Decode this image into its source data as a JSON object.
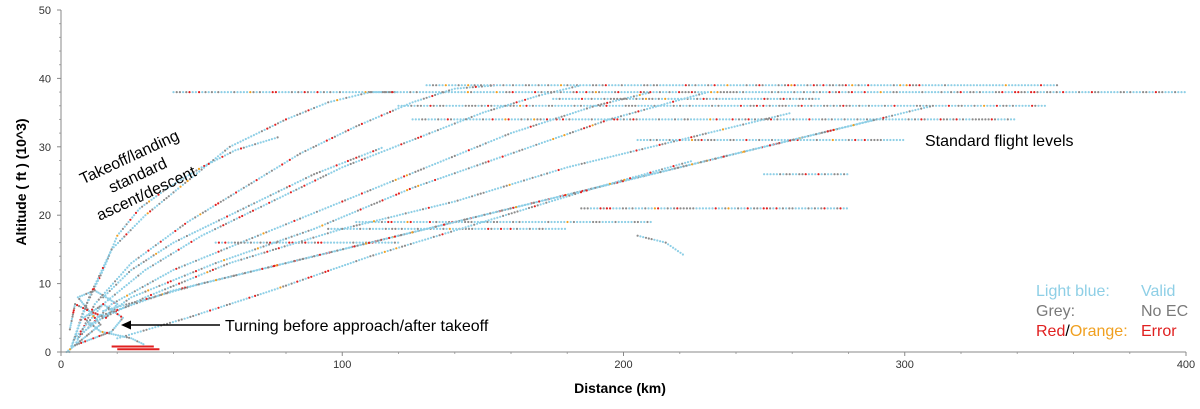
{
  "chart_data": {
    "type": "scatter",
    "xlabel": "Distance (km)",
    "ylabel": "Altitude ( ft ) (10^3)",
    "xlim": [
      0,
      400
    ],
    "ylim": [
      0,
      50
    ],
    "xticks": [
      0,
      100,
      200,
      300,
      400
    ],
    "yticks": [
      0,
      10,
      20,
      30,
      40,
      50
    ],
    "colors": {
      "valid": "#8ecfe6",
      "noec": "#8c8c8c",
      "error": "#e02020",
      "orange": "#f0a020"
    },
    "annotations": {
      "takeoff": [
        "Takeoff/landing",
        "standard",
        "ascent/descent"
      ],
      "levels": "Standard flight levels",
      "turning": "Turning before approach/after takeoff"
    },
    "legend": {
      "light_blue": "Light blue:",
      "valid": "Valid",
      "grey": "Grey:",
      "noec": "No EC",
      "red": "Red",
      "slash": "/",
      "orange": "Orange",
      "colon": ":",
      "error": "Error"
    },
    "levels": [
      {
        "alt": 39,
        "x": [
          130,
          355
        ]
      },
      {
        "alt": 38,
        "x": [
          40,
          400
        ]
      },
      {
        "alt": 37,
        "x": [
          175,
          270
        ]
      },
      {
        "alt": 36,
        "x": [
          120,
          350
        ]
      },
      {
        "alt": 34,
        "x": [
          125,
          340
        ]
      },
      {
        "alt": 31,
        "x": [
          205,
          300
        ]
      },
      {
        "alt": 26,
        "x": [
          250,
          280
        ]
      },
      {
        "alt": 21,
        "x": [
          185,
          280
        ]
      },
      {
        "alt": 19,
        "x": [
          105,
          210
        ]
      },
      {
        "alt": 18,
        "x": [
          95,
          180
        ]
      },
      {
        "alt": 16,
        "x": [
          55,
          120
        ]
      }
    ],
    "tracks": [
      {
        "x": [
          3,
          8,
          15,
          20,
          28,
          38,
          50,
          62,
          70,
          78
        ],
        "y": [
          0,
          6,
          12,
          17,
          21,
          24,
          27,
          29.5,
          30.5,
          31.5
        ]
      },
      {
        "x": [
          4,
          10,
          18,
          30,
          45,
          60,
          80,
          95,
          110,
          120
        ],
        "y": [
          1,
          8,
          15,
          20,
          25,
          30,
          34,
          36.5,
          38,
          38
        ]
      },
      {
        "x": [
          5,
          12,
          25,
          45,
          65,
          85,
          105,
          125,
          140,
          155
        ],
        "y": [
          1,
          7,
          13,
          19,
          24,
          29,
          33,
          36.5,
          38.5,
          39
        ]
      },
      {
        "x": [
          5,
          15,
          30,
          50,
          75,
          100,
          125,
          150,
          170,
          185
        ],
        "y": [
          2,
          7,
          12,
          17,
          22,
          27,
          31,
          35,
          37.5,
          39
        ]
      },
      {
        "x": [
          6,
          18,
          40,
          70,
          100,
          130,
          160,
          190,
          210
        ],
        "y": [
          2,
          7,
          12,
          17,
          22,
          27,
          32,
          36,
          38
        ]
      },
      {
        "x": [
          8,
          25,
          55,
          90,
          125,
          160,
          195,
          230
        ],
        "y": [
          3,
          8,
          13,
          18,
          24,
          29,
          34,
          38
        ]
      },
      {
        "x": [
          10,
          30,
          60,
          100,
          140,
          180,
          220,
          260
        ],
        "y": [
          4,
          8,
          13,
          18,
          22,
          27,
          31,
          35
        ]
      },
      {
        "x": [
          12,
          40,
          80,
          120,
          160,
          200,
          240,
          280,
          310
        ],
        "y": [
          5,
          9,
          13,
          17,
          21,
          25,
          29,
          33,
          36
        ]
      },
      {
        "x": [
          15,
          50,
          90,
          130,
          170,
          210,
          250,
          290
        ],
        "y": [
          6,
          10,
          14,
          18,
          22,
          26,
          30,
          34
        ]
      },
      {
        "x": [
          20,
          45,
          75,
          110,
          150,
          190,
          225
        ],
        "y": [
          2,
          5,
          9,
          14,
          19,
          24,
          28
        ]
      },
      {
        "x": [
          15,
          25,
          40,
          60,
          90,
          115
        ],
        "y": [
          8,
          12,
          16,
          20,
          26,
          30
        ]
      },
      {
        "x": [
          205,
          215,
          222
        ],
        "y": [
          17,
          16,
          14
        ]
      }
    ],
    "turning": [
      {
        "x": [
          2,
          8,
          14,
          10,
          6,
          12,
          20,
          16,
          10,
          5,
          3
        ],
        "y": [
          0,
          2,
          4,
          6,
          8,
          9,
          7,
          5,
          6,
          7,
          3
        ]
      },
      {
        "x": [
          5,
          18,
          22,
          15,
          8,
          14,
          25,
          30
        ],
        "y": [
          1,
          3,
          5,
          7,
          5,
          3,
          2,
          1
        ]
      }
    ],
    "red_segments": [
      {
        "x": [
          18,
          33
        ],
        "y": [
          0.8,
          0.8
        ]
      },
      {
        "x": [
          20,
          35
        ],
        "y": [
          0.4,
          0.4
        ]
      }
    ]
  }
}
